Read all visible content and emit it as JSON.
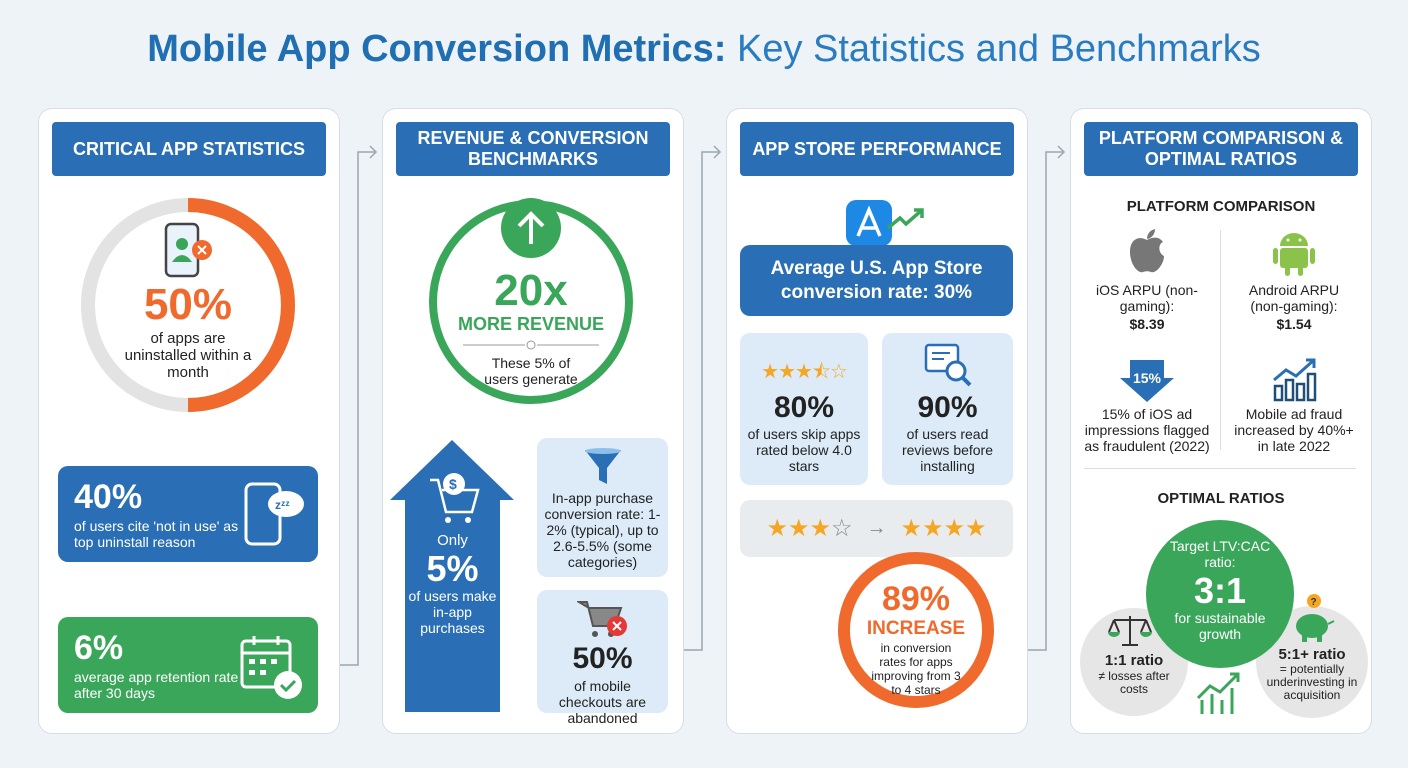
{
  "title": {
    "bold": "Mobile App Conversion Metrics:",
    "rest": " Key Statistics and Benchmarks"
  },
  "colors": {
    "blue": "#2a6fb5",
    "orange": "#ef6a2c",
    "green": "#3aa65a",
    "light_blue": "#dcebf7"
  },
  "panel1": {
    "header": "CRITICAL APP STATISTICS",
    "donut": {
      "value": "50%",
      "text": "of apps are uninstalled within a month",
      "fraction": 0.5
    },
    "stat2": {
      "value": "40%",
      "text": "of users cite 'not in use' as top uninstall reason"
    },
    "stat3": {
      "value": "6%",
      "text": "average app retention rate after 30 days"
    }
  },
  "panel2": {
    "header": "REVENUE & CONVERSION BENCHMARKS",
    "circle": {
      "value": "20x",
      "label": "MORE REVENUE",
      "text": "These 5% of users generate"
    },
    "arrow": {
      "pre": "Only",
      "value": "5%",
      "text": "of users make in-app purchases"
    },
    "box1": {
      "text": "In-app purchase conversion rate: 1-2% (typical), up to 2.6-5.5% (some categories)"
    },
    "box2": {
      "value": "50%",
      "text": "of mobile checkouts are abandoned"
    }
  },
  "panel3": {
    "header": "APP STORE PERFORMANCE",
    "banner": "Average U.S. App Store conversion rate: 30%",
    "card1": {
      "value": "80%",
      "text": "of users skip apps rated below 4.0 stars",
      "stars": 3.5
    },
    "card2": {
      "value": "90%",
      "text": "of users read reviews before installing"
    },
    "stars_from": 3,
    "stars_to": 4,
    "donut": {
      "value": "89%",
      "label": "INCREASE",
      "text": "in conversion rates for apps improving from 3 to 4 stars"
    }
  },
  "panel4": {
    "header": "PLATFORM COMPARISON & OPTIMAL RATIOS",
    "comparison_title": "PLATFORM COMPARISON",
    "ios": {
      "label": "iOS ARPU (non-gaming):",
      "value": "$8.39",
      "badge": "15%",
      "text": "15% of iOS ad impressions flagged as fraudulent (2022)"
    },
    "android": {
      "label": "Android ARPU (non-gaming):",
      "value": "$1.54",
      "text": "Mobile ad fraud increased by 40%+ in late 2022"
    },
    "ratios_title": "OPTIMAL RATIOS",
    "target": {
      "pre": "Target LTV:CAC ratio:",
      "value": "3:1",
      "post": "for sustainable growth"
    },
    "low": {
      "value": "1:1 ratio",
      "text": "≠ losses after costs"
    },
    "high": {
      "value": "5:1+ ratio",
      "text": "= potentially underinvesting in acquisition"
    }
  }
}
